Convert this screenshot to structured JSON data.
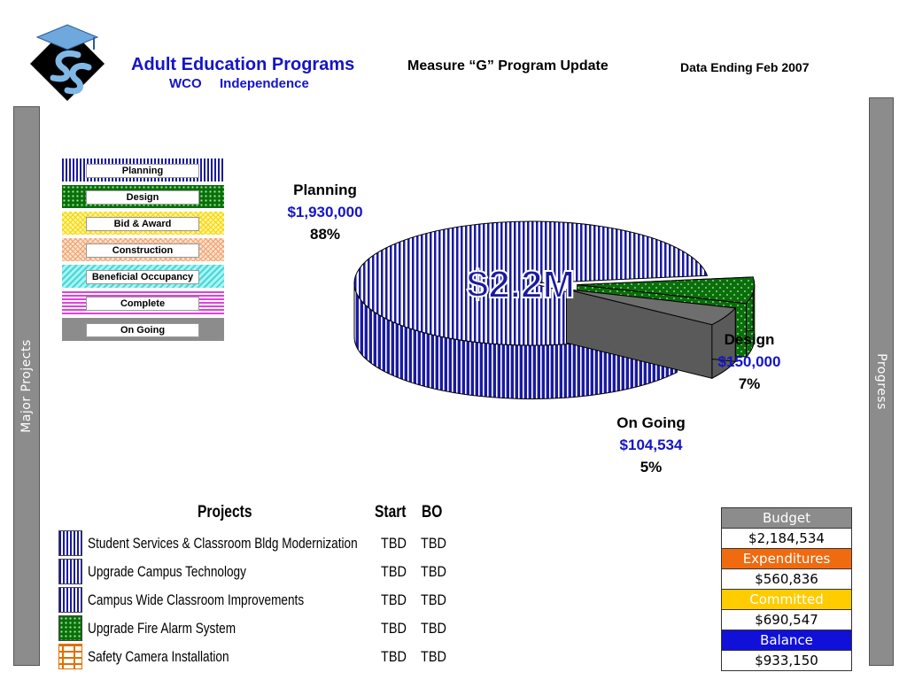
{
  "header": {
    "title": "Adult Education Programs",
    "subtitle": "Measure “G” Program Update",
    "data_ending": "Data Ending Feb 2007",
    "sub_left": "WCO",
    "sub_right": "Independence",
    "logo_icon": "graduation-cap-es-logo-icon"
  },
  "sidebars": {
    "left": "Major Projects",
    "right": "Progress"
  },
  "legend": [
    {
      "label": "Planning",
      "pattern": "planning"
    },
    {
      "label": "Design",
      "pattern": "design"
    },
    {
      "label": "Bid & Award",
      "pattern": "bid"
    },
    {
      "label": "Construction",
      "pattern": "construction"
    },
    {
      "label": "Beneficial Occupancy",
      "pattern": "beneficial"
    },
    {
      "label": "Complete",
      "pattern": "complete"
    },
    {
      "label": "On Going",
      "pattern": "ongoing"
    }
  ],
  "chart_data": {
    "type": "pie",
    "center_label": "$2.2M",
    "slices": [
      {
        "name": "Planning",
        "amount": "$1,930,000",
        "value": 1930000,
        "percent": "88%",
        "color": "#1a1aa0"
      },
      {
        "name": "Design",
        "amount": "$150,000",
        "value": 150000,
        "percent": "7%",
        "color": "#0a6e0a"
      },
      {
        "name": "On Going",
        "amount": "$104,534",
        "value": 104534,
        "percent": "5%",
        "color": "#8c8c8c"
      }
    ]
  },
  "projects": {
    "headers": {
      "project": "Projects",
      "start": "Start",
      "bo": "BO"
    },
    "rows": [
      {
        "name": "Student Services & Classroom Bldg Modernization",
        "start": "TBD",
        "bo": "TBD",
        "pattern": "planning"
      },
      {
        "name": "Upgrade Campus Technology",
        "start": "TBD",
        "bo": "TBD",
        "pattern": "planning"
      },
      {
        "name": "Campus Wide Classroom Improvements",
        "start": "TBD",
        "bo": "TBD",
        "pattern": "planning"
      },
      {
        "name": "Upgrade Fire Alarm System",
        "start": "TBD",
        "bo": "TBD",
        "pattern": "design"
      },
      {
        "name": "Safety Camera Installation",
        "start": "TBD",
        "bo": "TBD",
        "pattern": "brick"
      }
    ]
  },
  "budget": [
    {
      "label": "Budget",
      "value": "$2,184,534",
      "color": "#8c8c8c"
    },
    {
      "label": "Expenditures",
      "value": "$560,836",
      "color": "#f06a10"
    },
    {
      "label": "Committed",
      "value": "$690,547",
      "color": "#ffcc00"
    },
    {
      "label": "Balance",
      "value": "$933,150",
      "color": "#1010d8"
    }
  ]
}
